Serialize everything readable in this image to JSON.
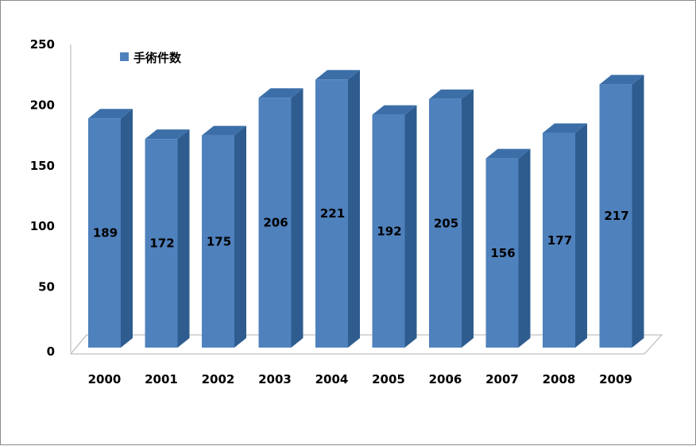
{
  "chart_data": {
    "type": "bar",
    "style": "3d-column",
    "categories": [
      "2000",
      "2001",
      "2002",
      "2003",
      "2004",
      "2005",
      "2006",
      "2007",
      "2008",
      "2009"
    ],
    "series": [
      {
        "name": "手術件数",
        "values": [
          189,
          172,
          175,
          206,
          221,
          192,
          205,
          156,
          177,
          217
        ]
      }
    ],
    "ylim": [
      0,
      250
    ],
    "yticks": [
      0,
      50,
      100,
      150,
      200,
      250
    ],
    "grid": false,
    "legend_position": "top-left",
    "data_labels": true
  },
  "colors": {
    "bar_front": "#4F81BD",
    "bar_side": "#2E5C8F",
    "bar_top": "#3C6FA8",
    "floor": "#FFFFFF",
    "axis": "#B0B0B0"
  }
}
